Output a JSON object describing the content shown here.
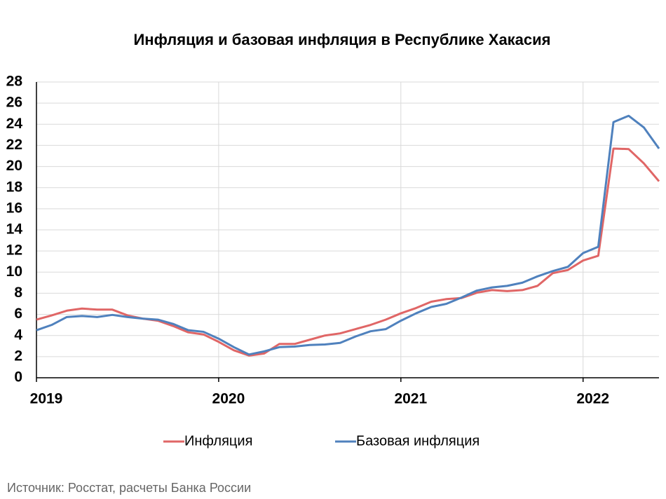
{
  "chart_data": {
    "type": "line",
    "title": "Инфляция и базовая инфляция в Республике Хакасия",
    "source": "Источник: Росстат, расчеты Банка России",
    "x": [
      "2019-01",
      "2019-02",
      "2019-03",
      "2019-04",
      "2019-05",
      "2019-06",
      "2019-07",
      "2019-08",
      "2019-09",
      "2019-10",
      "2019-11",
      "2019-12",
      "2020-01",
      "2020-02",
      "2020-03",
      "2020-04",
      "2020-05",
      "2020-06",
      "2020-07",
      "2020-08",
      "2020-09",
      "2020-10",
      "2020-11",
      "2020-12",
      "2021-01",
      "2021-02",
      "2021-03",
      "2021-04",
      "2021-05",
      "2021-06",
      "2021-07",
      "2021-08",
      "2021-09",
      "2021-10",
      "2021-11",
      "2021-12",
      "2022-01",
      "2022-02",
      "2022-03",
      "2022-04",
      "2022-05",
      "2022-06"
    ],
    "series": [
      {
        "name": "Инфляция",
        "color": "#e06666",
        "values": [
          5.5,
          5.9,
          6.35,
          6.55,
          6.45,
          6.45,
          5.9,
          5.6,
          5.4,
          4.9,
          4.3,
          4.1,
          3.4,
          2.6,
          2.1,
          2.3,
          3.2,
          3.2,
          3.6,
          4.0,
          4.2,
          4.6,
          5.0,
          5.5,
          6.1,
          6.6,
          7.2,
          7.45,
          7.55,
          8.05,
          8.3,
          8.2,
          8.3,
          8.7,
          9.9,
          10.2,
          11.1,
          11.55,
          21.7,
          21.65,
          20.3,
          18.6
        ]
      },
      {
        "name": "Базовая инфляция",
        "color": "#4f81bd",
        "values": [
          4.5,
          5.0,
          5.75,
          5.85,
          5.75,
          5.95,
          5.75,
          5.6,
          5.5,
          5.1,
          4.5,
          4.35,
          3.7,
          2.9,
          2.2,
          2.5,
          2.9,
          2.95,
          3.1,
          3.15,
          3.3,
          3.9,
          4.4,
          4.6,
          5.4,
          6.1,
          6.7,
          7.0,
          7.6,
          8.25,
          8.55,
          8.7,
          9.0,
          9.6,
          10.1,
          10.5,
          11.8,
          12.4,
          24.2,
          24.8,
          23.7,
          21.7
        ]
      }
    ],
    "xlim": [
      "2019-01",
      "2022-06"
    ],
    "xticks": [
      2019,
      2020,
      2021,
      2022
    ],
    "ylim": [
      0,
      28
    ],
    "yticks": [
      0,
      2,
      4,
      6,
      8,
      10,
      12,
      14,
      16,
      18,
      20,
      22,
      24,
      26,
      28
    ],
    "grid": true
  }
}
